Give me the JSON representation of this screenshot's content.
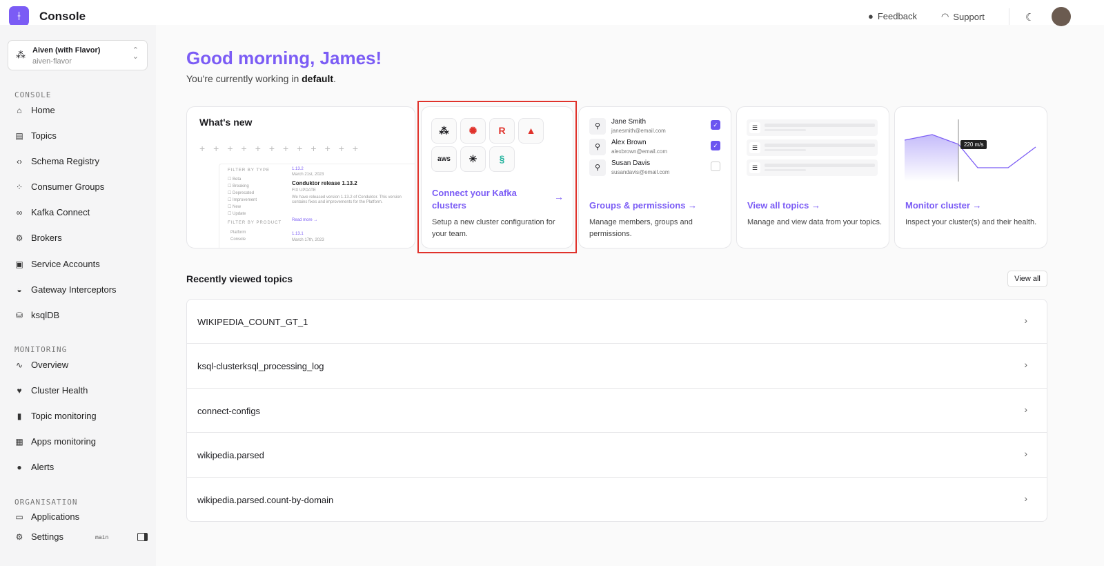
{
  "app": {
    "title": "Console",
    "feedback": "Feedback",
    "support": "Support"
  },
  "workspace": {
    "name": "Aiven (with Flavor)",
    "slug": "aiven-flavor"
  },
  "sidebar": {
    "sections": [
      {
        "title": "CONSOLE",
        "items": [
          {
            "label": "Home",
            "icon": "home-icon"
          },
          {
            "label": "Topics",
            "icon": "topics-icon"
          },
          {
            "label": "Schema Registry",
            "icon": "code-icon"
          },
          {
            "label": "Consumer Groups",
            "icon": "groups-icon"
          },
          {
            "label": "Kafka Connect",
            "icon": "link-icon"
          },
          {
            "label": "Brokers",
            "icon": "chip-icon"
          },
          {
            "label": "Service Accounts",
            "icon": "account-icon"
          },
          {
            "label": "Gateway Interceptors",
            "icon": "gateway-icon"
          },
          {
            "label": "ksqlDB",
            "icon": "database-icon"
          }
        ]
      },
      {
        "title": "MONITORING",
        "items": [
          {
            "label": "Overview",
            "icon": "pulse-icon"
          },
          {
            "label": "Cluster Health",
            "icon": "heart-icon"
          },
          {
            "label": "Topic monitoring",
            "icon": "bar-chart-icon"
          },
          {
            "label": "Apps monitoring",
            "icon": "apps-icon"
          },
          {
            "label": "Alerts",
            "icon": "alert-icon"
          }
        ]
      },
      {
        "title": "ORGANISATION",
        "items": [
          {
            "label": "Applications",
            "icon": "applications-icon"
          }
        ]
      }
    ],
    "settings": "Settings",
    "branch": "main"
  },
  "greeting": {
    "title": "Good morning, James!",
    "prefix": "You're currently working in ",
    "env": "default",
    "suffix": "."
  },
  "cards": {
    "whats_new": {
      "title": "What's new",
      "filter_type": "FILTER BY TYPE",
      "types": [
        "Beta",
        "Breaking",
        "Deprecated",
        "Improvement",
        "New",
        "Update"
      ],
      "filter_product": "FILTER BY PRODUCT",
      "products": [
        "Platform",
        "Console"
      ],
      "version": "1.13.2",
      "date": "March 21st, 2023",
      "release_title": "Conduktor release 1.13.2",
      "tags": [
        "FIX",
        "UPDATE"
      ],
      "body": "We have released version 1.13.2 of Conduktor. This version contains fixes and improvements for the Platform.",
      "read_more": "Read more →",
      "version2": "1.13.1",
      "date2": "March 17th, 2023"
    },
    "connect": {
      "link": "Connect your Kafka clusters",
      "desc": "Setup a new cluster configuration for your team."
    },
    "groups": {
      "link": "Groups & permissions →",
      "desc": "Manage members, groups and permissions.",
      "users": [
        {
          "name": "Jane Smith",
          "email": "janesmith@email.com",
          "checked": true
        },
        {
          "name": "Alex Brown",
          "email": "alexbrown@email.com",
          "checked": true
        },
        {
          "name": "Susan Davis",
          "email": "susandavis@email.com",
          "checked": false
        }
      ]
    },
    "topics": {
      "link": "View all topics →",
      "desc": "Manage and view data from your topics."
    },
    "monitor": {
      "link": "Monitor cluster →",
      "desc": "Inspect your cluster(s) and their health.",
      "tooltip": "220 m/s"
    }
  },
  "recent": {
    "title": "Recently viewed topics",
    "view_all": "View all",
    "topics": [
      "WIKIPEDIA_COUNT_GT_1",
      "ksql-clusterksql_processing_log",
      "connect-configs",
      "wikipedia.parsed",
      "wikipedia.parsed.count-by-domain"
    ]
  },
  "colors": {
    "accent": "#7b5cf5",
    "highlight": "#e0322b"
  }
}
